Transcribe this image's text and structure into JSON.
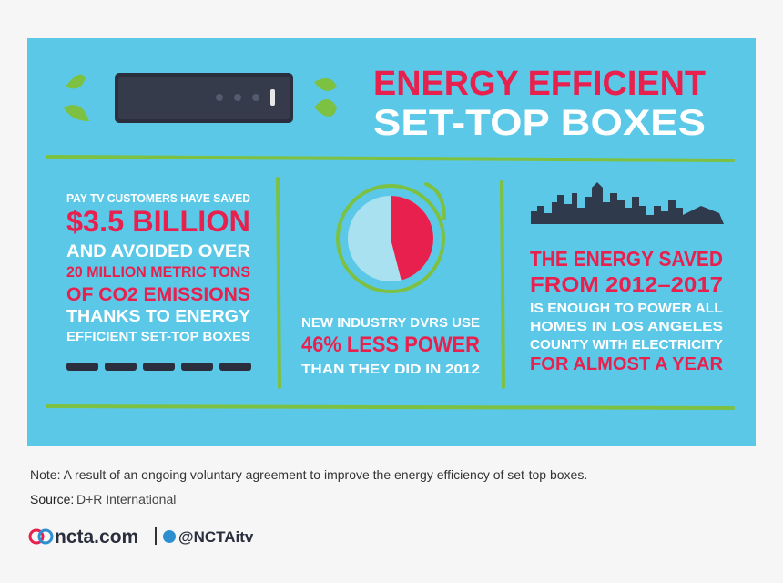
{
  "header": {
    "title_line1": "ENERGY EFFICIENT",
    "title_line2": "SET-TOP BOXES"
  },
  "left": {
    "line1": "PAY TV CUSTOMERS HAVE SAVED",
    "line2": "$3.5 BILLION",
    "line3": "AND AVOIDED OVER",
    "line4": "20 MILLION METRIC TONS",
    "line5": "OF CO2 EMISSIONS",
    "line6": "THANKS TO ENERGY",
    "line7": "EFFICIENT SET-TOP BOXES"
  },
  "middle": {
    "line1": "NEW INDUSTRY DVRS USE",
    "line2": "46% LESS POWER",
    "line3": "THAN THEY DID IN 2012",
    "pie_value": 46
  },
  "right": {
    "line1": "THE ENERGY SAVED",
    "line2": "FROM 2012–2017",
    "line3": "IS ENOUGH TO POWER ALL",
    "line4": "HOMES IN LOS ANGELES",
    "line5": "COUNTY WITH ELECTRICITY",
    "line6": "FOR ALMOST A YEAR"
  },
  "footer": {
    "note": "Note: A result of an ongoing voluntary agreement to improve the energy efficiency of set-top boxes.",
    "source_label": "Source:",
    "source": "D+R International",
    "site": "ncta.com",
    "handle": "@NCTAitv"
  }
}
